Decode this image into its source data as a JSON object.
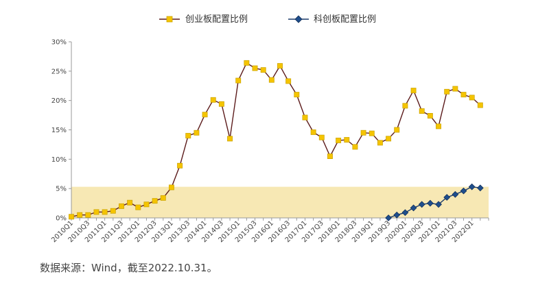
{
  "chart_data": {
    "type": "line",
    "title": "",
    "xlabel": "",
    "ylabel": "",
    "ylim": [
      0,
      30
    ],
    "y_ticks": [
      "0%",
      "5%",
      "10%",
      "15%",
      "20%",
      "25%",
      "30%"
    ],
    "y_tick_values": [
      0,
      5,
      10,
      15,
      20,
      25,
      30
    ],
    "x": [
      "2010Q1",
      "2010Q2",
      "2010Q3",
      "2010Q4",
      "2011Q1",
      "2011Q2",
      "2011Q3",
      "2011Q4",
      "2012Q1",
      "2012Q2",
      "2012Q3",
      "2012Q4",
      "2013Q1",
      "2013Q2",
      "2013Q3",
      "2013Q4",
      "2014Q1",
      "2014Q2",
      "2014Q3",
      "2014Q4",
      "2015Q1",
      "2015Q2",
      "2015Q3",
      "2015Q4",
      "2016Q1",
      "2016Q2",
      "2016Q3",
      "2016Q4",
      "2017Q1",
      "2017Q2",
      "2017Q3",
      "2017Q4",
      "2018Q1",
      "2018Q2",
      "2018Q3",
      "2018Q4",
      "2019Q1",
      "2019Q2",
      "2019Q3",
      "2019Q4",
      "2020Q1",
      "2020Q2",
      "2020Q3",
      "2020Q4",
      "2021Q1",
      "2021Q2",
      "2021Q3",
      "2021Q4",
      "2022Q1",
      "2022Q2",
      "2022Q3"
    ],
    "x_tick_labels": [
      "2010Q1",
      "2010Q3",
      "2011Q1",
      "2011Q3",
      "2012Q1",
      "2012Q3",
      "2013Q1",
      "2013Q3",
      "2014Q1",
      "2014Q3",
      "2015Q1",
      "2015Q3",
      "2016Q1",
      "2016Q3",
      "2017Q1",
      "2017Q3",
      "2018Q1",
      "2018Q3",
      "2019Q1",
      "2019Q3",
      "2020Q1",
      "2020Q3",
      "2021Q1",
      "2021Q3",
      "2022Q1"
    ],
    "legend_position": "top",
    "grid": false,
    "highlight_band": {
      "from": 0,
      "to": 5.3,
      "color": "#f7e8b4"
    },
    "series": [
      {
        "name": "创业板配置比例",
        "line_color": "#5b1a1a",
        "marker": "square",
        "marker_color": "#f5c400",
        "values": [
          0.2,
          0.5,
          0.5,
          1.0,
          1.0,
          1.2,
          2.0,
          2.6,
          1.8,
          2.3,
          2.9,
          3.4,
          5.2,
          8.9,
          14.0,
          14.5,
          17.6,
          20.1,
          19.4,
          13.5,
          23.4,
          26.4,
          25.5,
          25.2,
          23.5,
          25.9,
          23.3,
          21.0,
          17.1,
          14.6,
          13.7,
          10.5,
          13.2,
          13.3,
          12.1,
          14.5,
          14.4,
          12.8,
          13.5,
          15.0,
          19.1,
          21.7,
          18.2,
          17.4,
          15.6,
          21.5,
          22.0,
          21.0,
          20.5,
          19.2,
          null
        ]
      },
      {
        "name": "科创板配置比例",
        "line_color": "#1a3a6b",
        "marker": "diamond",
        "marker_color": "#1f4e8c",
        "values": [
          null,
          null,
          null,
          null,
          null,
          null,
          null,
          null,
          null,
          null,
          null,
          null,
          null,
          null,
          null,
          null,
          null,
          null,
          null,
          null,
          null,
          null,
          null,
          null,
          null,
          null,
          null,
          null,
          null,
          null,
          null,
          null,
          null,
          null,
          null,
          null,
          null,
          null,
          0.0,
          0.5,
          0.9,
          1.7,
          2.3,
          2.5,
          2.3,
          3.5,
          4.0,
          4.6,
          5.3,
          5.1,
          null
        ]
      }
    ]
  },
  "source_text": "数据来源：Wind，截至2022.10.31。"
}
